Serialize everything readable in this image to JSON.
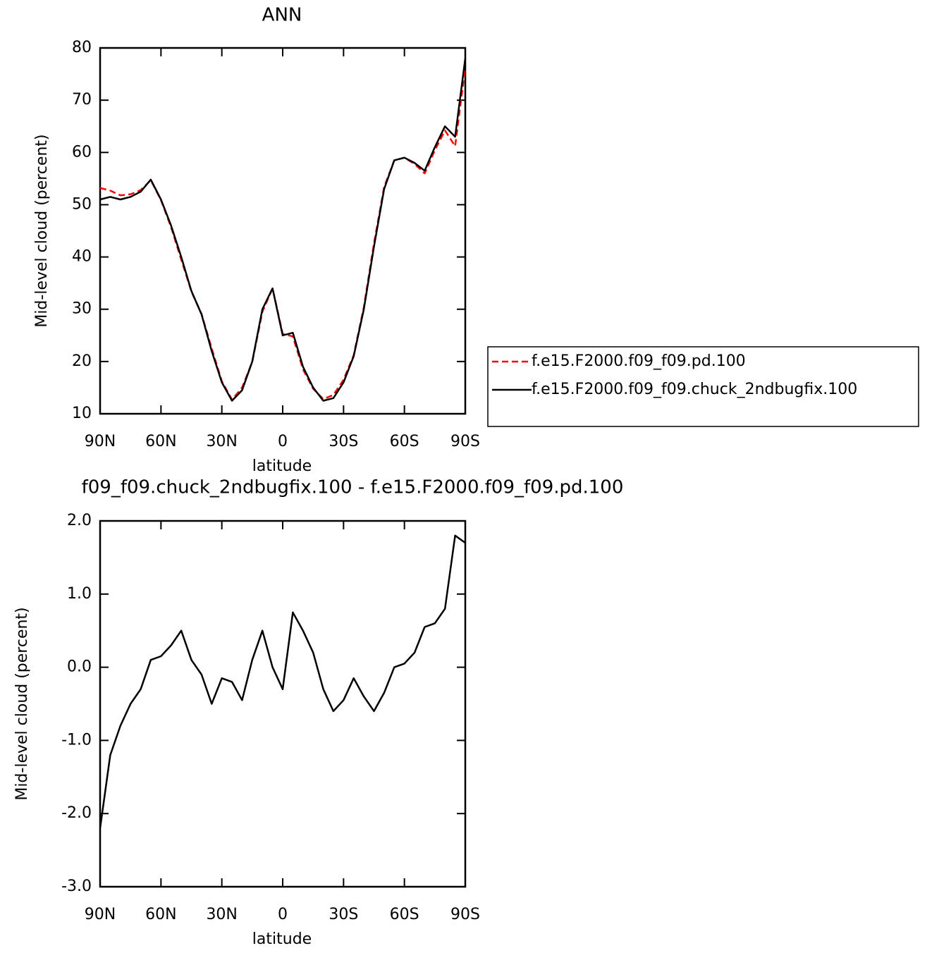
{
  "chart_data": [
    {
      "type": "line",
      "title": "ANN",
      "x_label": "latitude",
      "y_label": "Mid-level cloud (percent)",
      "x": [
        90,
        85,
        80,
        75,
        70,
        65,
        60,
        55,
        50,
        45,
        40,
        35,
        30,
        25,
        20,
        15,
        10,
        5,
        0,
        -5,
        -10,
        -15,
        -20,
        -25,
        -30,
        -35,
        -40,
        -45,
        -50,
        -55,
        -60,
        -65,
        -70,
        -75,
        -80,
        -85,
        -90
      ],
      "series": [
        {
          "name": "f.e15.F2000.f09_f09.pd.100",
          "color": "#ff0000",
          "dashed": true,
          "values": [
            53.2,
            52.7,
            51.8,
            52,
            52.8,
            54.7,
            50.9,
            45.7,
            39.5,
            33.4,
            29.1,
            22.5,
            16.2,
            12.7,
            15,
            19.9,
            29.5,
            34,
            25.3,
            24.8,
            18.5,
            14.8,
            12.8,
            13.6,
            16.5,
            21.2,
            30.4,
            42.6,
            53.4,
            58.5,
            59,
            57.8,
            56,
            60.4,
            64.2,
            61.2,
            76.3
          ]
        },
        {
          "name": "f.e15.F2000.f09_f09.chuck_2ndbugfix.100",
          "color": "#000000",
          "dashed": false,
          "values": [
            51,
            51.5,
            51,
            51.5,
            52.5,
            54.8,
            51,
            46,
            40,
            33.5,
            29,
            22,
            16,
            12.5,
            14.5,
            20,
            30,
            34,
            25,
            25.5,
            19,
            15,
            12.5,
            13,
            16,
            21,
            30,
            42,
            53,
            58.5,
            59,
            58,
            56.5,
            61,
            65,
            63,
            78
          ]
        }
      ],
      "xlim": [
        90,
        -90
      ],
      "xticks": [
        {
          "value": 90,
          "label": "90N"
        },
        {
          "value": 60,
          "label": "60N"
        },
        {
          "value": 30,
          "label": "30N"
        },
        0,
        {
          "value": -30,
          "label": "30S"
        },
        {
          "value": -60,
          "label": "60S"
        },
        {
          "value": -90,
          "label": "90S"
        }
      ],
      "ylim": [
        10,
        80
      ],
      "yticks": [
        10,
        20,
        30,
        40,
        50,
        60,
        70,
        80
      ],
      "legend": "outside-right"
    },
    {
      "type": "line",
      "title": "f09_f09.chuck_2ndbugfix.100 - f.e15.F2000.f09_f09.pd.100",
      "x_label": "latitude",
      "y_label": "Mid-level cloud (percent)",
      "x": [
        90,
        85,
        80,
        75,
        70,
        65,
        60,
        55,
        50,
        45,
        40,
        35,
        30,
        25,
        20,
        15,
        10,
        5,
        0,
        -5,
        -10,
        -15,
        -20,
        -25,
        -30,
        -35,
        -40,
        -45,
        -50,
        -55,
        -60,
        -65,
        -70,
        -75,
        -80,
        -85,
        -90
      ],
      "values": [
        -2.2,
        -1.2,
        -0.8,
        -0.5,
        -0.3,
        0.1,
        0.15,
        0.3,
        0.5,
        0.1,
        -0.1,
        -0.5,
        -0.15,
        -0.2,
        -0.45,
        0.1,
        0.5,
        0,
        -0.3,
        0.75,
        0.5,
        0.2,
        -0.3,
        -0.6,
        -0.45,
        -0.15,
        -0.4,
        -0.6,
        -0.35,
        0,
        0.05,
        0.2,
        0.55,
        0.6,
        0.8,
        1.8,
        1.7
      ],
      "color": "#000000",
      "xlim": [
        90,
        -90
      ],
      "xticks": [
        {
          "value": 90,
          "label": "90N"
        },
        {
          "value": 60,
          "label": "60N"
        },
        {
          "value": 30,
          "label": "30N"
        },
        0,
        {
          "value": -30,
          "label": "30S"
        },
        {
          "value": -60,
          "label": "60S"
        },
        {
          "value": -90,
          "label": "90S"
        }
      ],
      "ylim": [
        -3,
        2
      ],
      "yticks": [
        {
          "value": -3,
          "label": "-3.0"
        },
        {
          "value": -2,
          "label": "-2.0"
        },
        {
          "value": -1,
          "label": "-1.0"
        },
        {
          "value": 0,
          "label": "0.0"
        },
        {
          "value": 1,
          "label": "1.0"
        },
        {
          "value": 2,
          "label": "2.0"
        }
      ]
    }
  ]
}
